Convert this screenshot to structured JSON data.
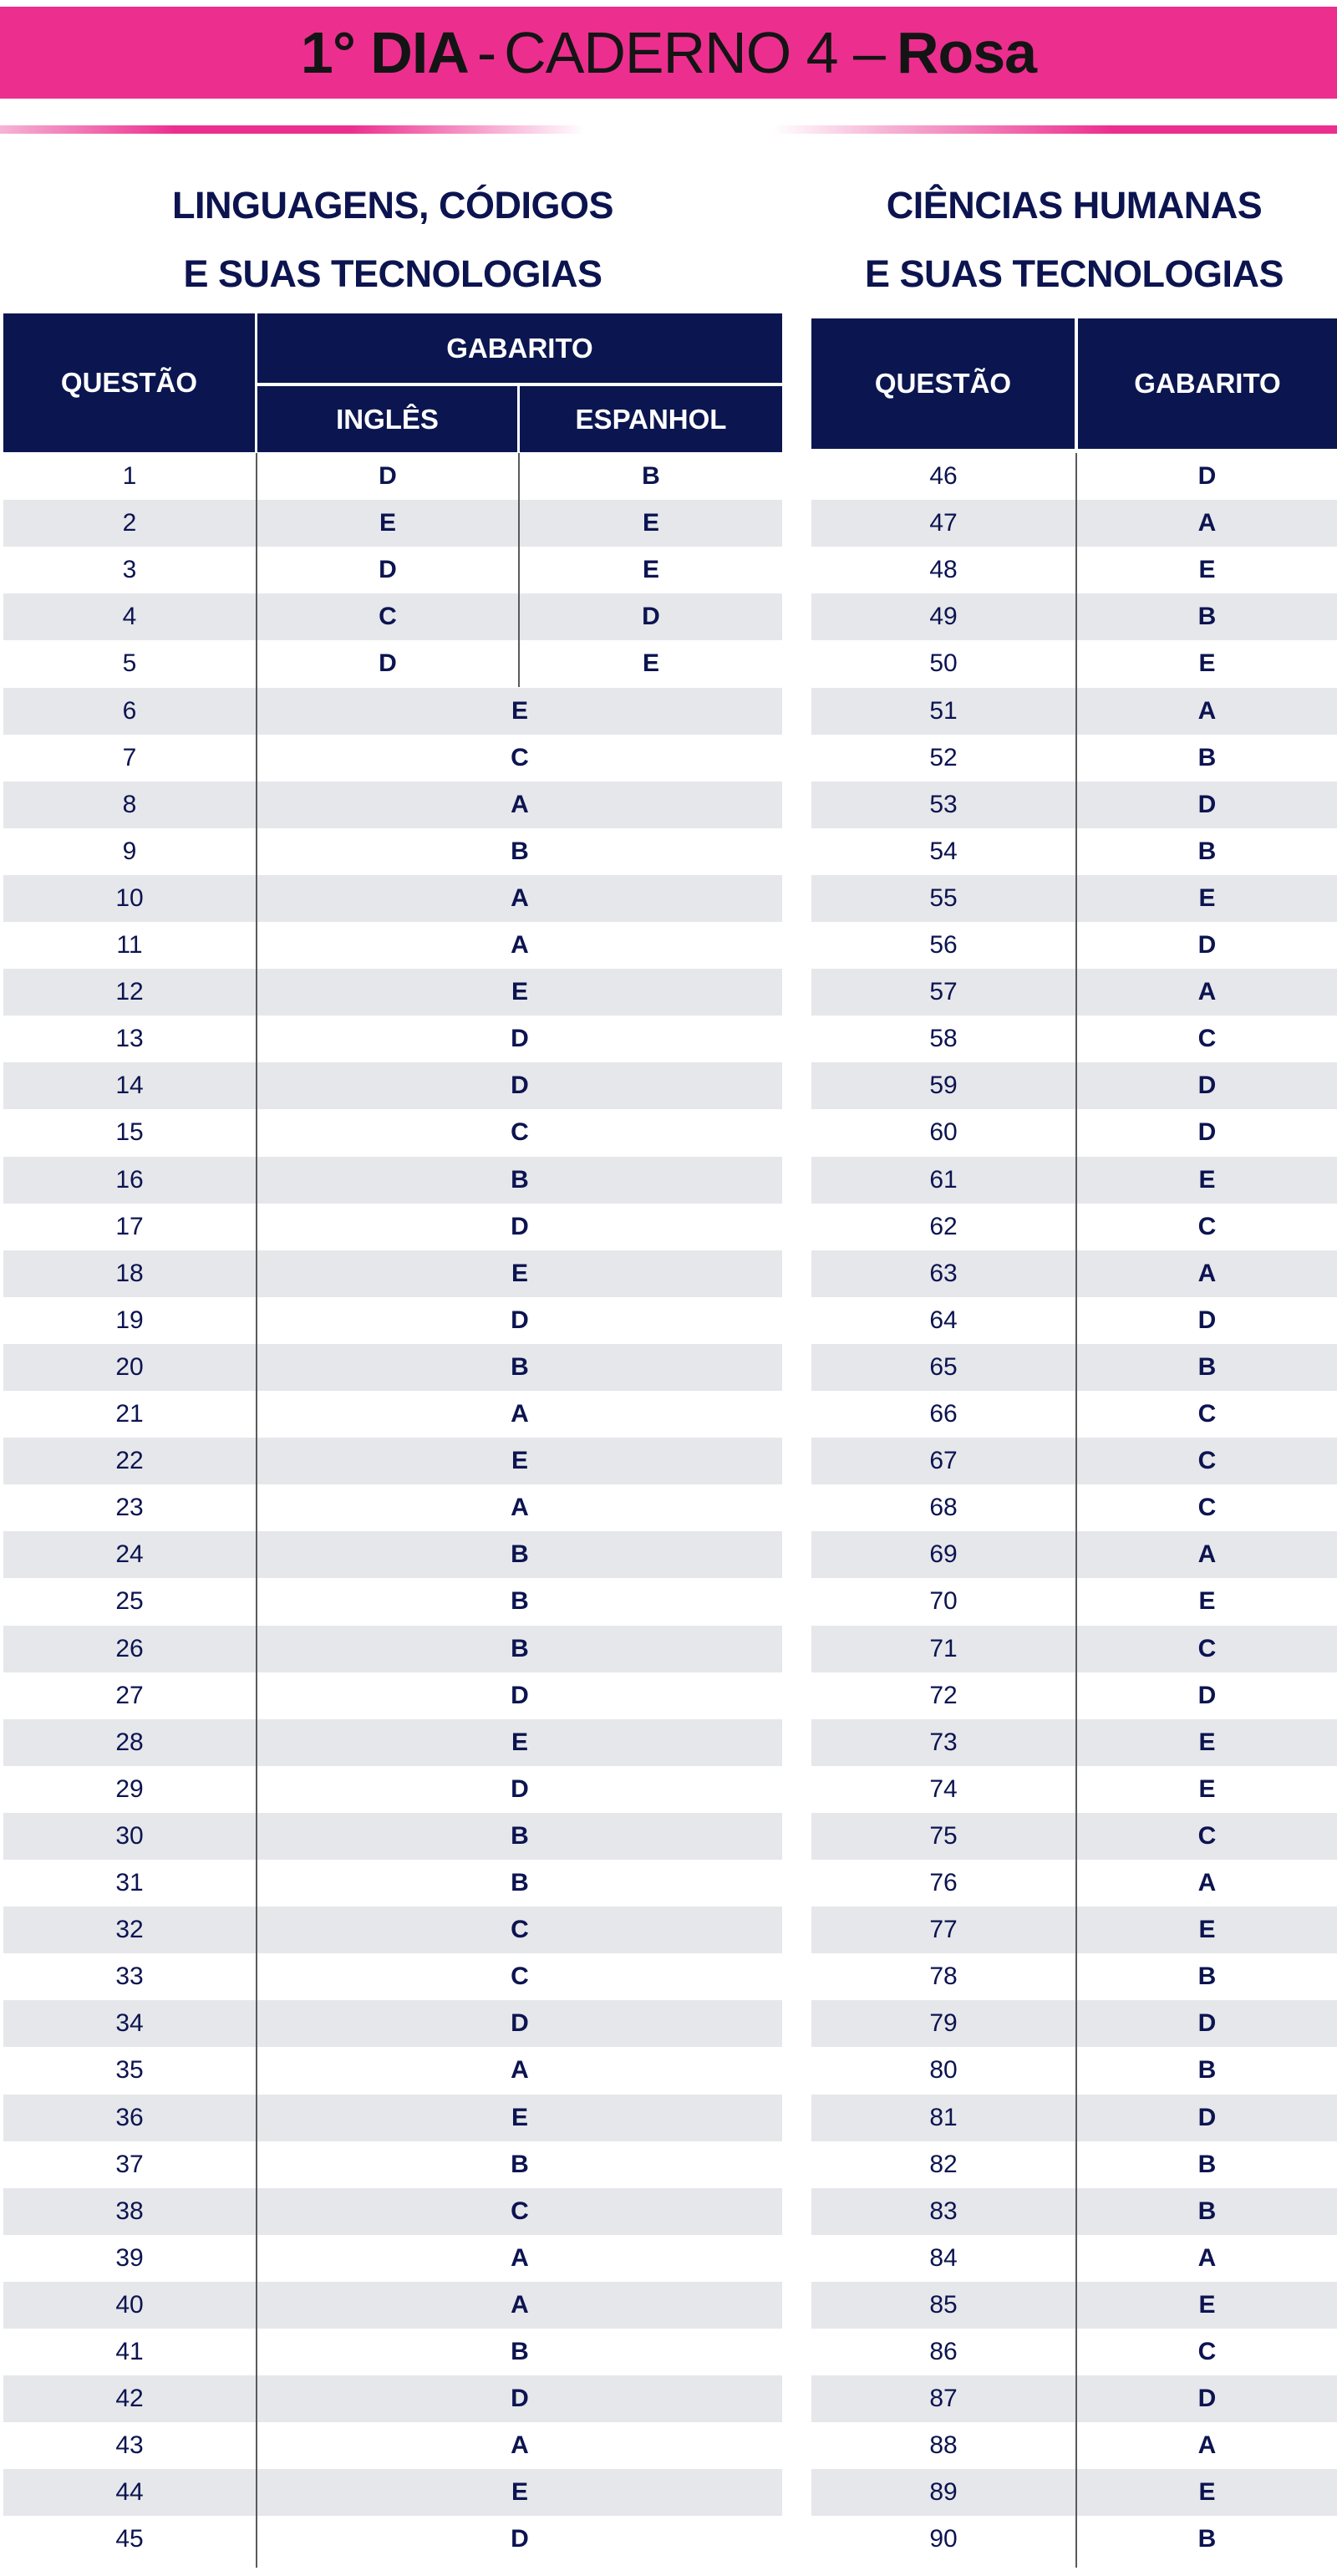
{
  "banner": {
    "part1": "1° DIA",
    "part2": "-",
    "part3": "CADERNO 4 –",
    "part4": "Rosa"
  },
  "colors": {
    "pink": "#ec2f8f",
    "navy": "#0b1650",
    "stripe": "#e6e7eb"
  },
  "left": {
    "title_line1": "LINGUAGENS, CÓDIGOS",
    "title_line2": "E SUAS TECNOLOGIAS",
    "header": {
      "questao": "QUESTÃO",
      "gabarito": "GABARITO",
      "ingles": "INGLÊS",
      "espanhol": "ESPANHOL"
    },
    "language_rows": [
      {
        "q": "1",
        "ingles": "D",
        "espanhol": "B"
      },
      {
        "q": "2",
        "ingles": "E",
        "espanhol": "E"
      },
      {
        "q": "3",
        "ingles": "D",
        "espanhol": "E"
      },
      {
        "q": "4",
        "ingles": "C",
        "espanhol": "D"
      },
      {
        "q": "5",
        "ingles": "D",
        "espanhol": "E"
      }
    ],
    "rows": [
      {
        "q": "6",
        "a": "E"
      },
      {
        "q": "7",
        "a": "C"
      },
      {
        "q": "8",
        "a": "A"
      },
      {
        "q": "9",
        "a": "B"
      },
      {
        "q": "10",
        "a": "A"
      },
      {
        "q": "11",
        "a": "A"
      },
      {
        "q": "12",
        "a": "E"
      },
      {
        "q": "13",
        "a": "D"
      },
      {
        "q": "14",
        "a": "D"
      },
      {
        "q": "15",
        "a": "C"
      },
      {
        "q": "16",
        "a": "B"
      },
      {
        "q": "17",
        "a": "D"
      },
      {
        "q": "18",
        "a": "E"
      },
      {
        "q": "19",
        "a": "D"
      },
      {
        "q": "20",
        "a": "B"
      },
      {
        "q": "21",
        "a": "A"
      },
      {
        "q": "22",
        "a": "E"
      },
      {
        "q": "23",
        "a": "A"
      },
      {
        "q": "24",
        "a": "B"
      },
      {
        "q": "25",
        "a": "B"
      },
      {
        "q": "26",
        "a": "B"
      },
      {
        "q": "27",
        "a": "D"
      },
      {
        "q": "28",
        "a": "E"
      },
      {
        "q": "29",
        "a": "D"
      },
      {
        "q": "30",
        "a": "B"
      },
      {
        "q": "31",
        "a": "B"
      },
      {
        "q": "32",
        "a": "C"
      },
      {
        "q": "33",
        "a": "C"
      },
      {
        "q": "34",
        "a": "D"
      },
      {
        "q": "35",
        "a": "A"
      },
      {
        "q": "36",
        "a": "E"
      },
      {
        "q": "37",
        "a": "B"
      },
      {
        "q": "38",
        "a": "C"
      },
      {
        "q": "39",
        "a": "A"
      },
      {
        "q": "40",
        "a": "A"
      },
      {
        "q": "41",
        "a": "B"
      },
      {
        "q": "42",
        "a": "D"
      },
      {
        "q": "43",
        "a": "A"
      },
      {
        "q": "44",
        "a": "E"
      },
      {
        "q": "45",
        "a": "D"
      }
    ]
  },
  "right": {
    "title_line1": "CIÊNCIAS HUMANAS",
    "title_line2": "E SUAS TECNOLOGIAS",
    "header": {
      "questao": "QUESTÃO",
      "gabarito": "GABARITO"
    },
    "rows": [
      {
        "q": "46",
        "a": "D"
      },
      {
        "q": "47",
        "a": "A"
      },
      {
        "q": "48",
        "a": "E"
      },
      {
        "q": "49",
        "a": "B"
      },
      {
        "q": "50",
        "a": "E"
      },
      {
        "q": "51",
        "a": "A"
      },
      {
        "q": "52",
        "a": "B"
      },
      {
        "q": "53",
        "a": "D"
      },
      {
        "q": "54",
        "a": "B"
      },
      {
        "q": "55",
        "a": "E"
      },
      {
        "q": "56",
        "a": "D"
      },
      {
        "q": "57",
        "a": "A"
      },
      {
        "q": "58",
        "a": "C"
      },
      {
        "q": "59",
        "a": "D"
      },
      {
        "q": "60",
        "a": "D"
      },
      {
        "q": "61",
        "a": "E"
      },
      {
        "q": "62",
        "a": "C"
      },
      {
        "q": "63",
        "a": "A"
      },
      {
        "q": "64",
        "a": "D"
      },
      {
        "q": "65",
        "a": "B"
      },
      {
        "q": "66",
        "a": "C"
      },
      {
        "q": "67",
        "a": "C"
      },
      {
        "q": "68",
        "a": "C"
      },
      {
        "q": "69",
        "a": "A"
      },
      {
        "q": "70",
        "a": "E"
      },
      {
        "q": "71",
        "a": "C"
      },
      {
        "q": "72",
        "a": "D"
      },
      {
        "q": "73",
        "a": "E"
      },
      {
        "q": "74",
        "a": "E"
      },
      {
        "q": "75",
        "a": "C"
      },
      {
        "q": "76",
        "a": "A"
      },
      {
        "q": "77",
        "a": "E"
      },
      {
        "q": "78",
        "a": "B"
      },
      {
        "q": "79",
        "a": "D"
      },
      {
        "q": "80",
        "a": "B"
      },
      {
        "q": "81",
        "a": "D"
      },
      {
        "q": "82",
        "a": "B"
      },
      {
        "q": "83",
        "a": "B"
      },
      {
        "q": "84",
        "a": "A"
      },
      {
        "q": "85",
        "a": "E"
      },
      {
        "q": "86",
        "a": "C"
      },
      {
        "q": "87",
        "a": "D"
      },
      {
        "q": "88",
        "a": "A"
      },
      {
        "q": "89",
        "a": "E"
      },
      {
        "q": "90",
        "a": "B"
      }
    ]
  }
}
